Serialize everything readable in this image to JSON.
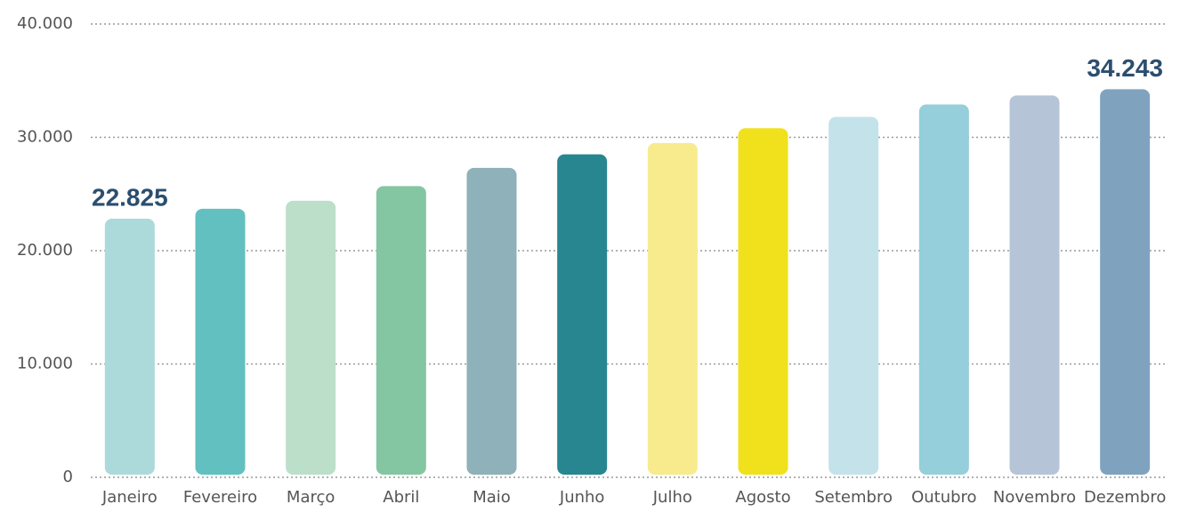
{
  "chart_data": {
    "type": "bar",
    "categories": [
      "Janeiro",
      "Fevereiro",
      "Março",
      "Abril",
      "Maio",
      "Junho",
      "Julho",
      "Agosto",
      "Setembro",
      "Outubro",
      "Novembro",
      "Dezembro"
    ],
    "values": [
      22825,
      23700,
      24400,
      25700,
      27300,
      28500,
      29500,
      30800,
      31800,
      32900,
      33700,
      34243
    ],
    "value_labels": [
      "22.825",
      null,
      null,
      null,
      null,
      null,
      null,
      null,
      null,
      null,
      null,
      "34.243"
    ],
    "colors": [
      "#acdadb",
      "#62c0c0",
      "#bcdfca",
      "#84c6a2",
      "#8fb1b9",
      "#288691",
      "#f7eb8e",
      "#f0e11c",
      "#c4e2ea",
      "#94cfdb",
      "#b6c4d8",
      "#7fa2bf"
    ],
    "ylim": [
      0,
      40000
    ],
    "yticks": [
      0,
      {
        "value": 10000,
        "label": "10.000"
      },
      {
        "value": 20000,
        "label": "20.000"
      },
      {
        "value": 30000,
        "label": "30.000"
      },
      {
        "value": 40000,
        "label": "40.000"
      }
    ],
    "grid": true
  }
}
